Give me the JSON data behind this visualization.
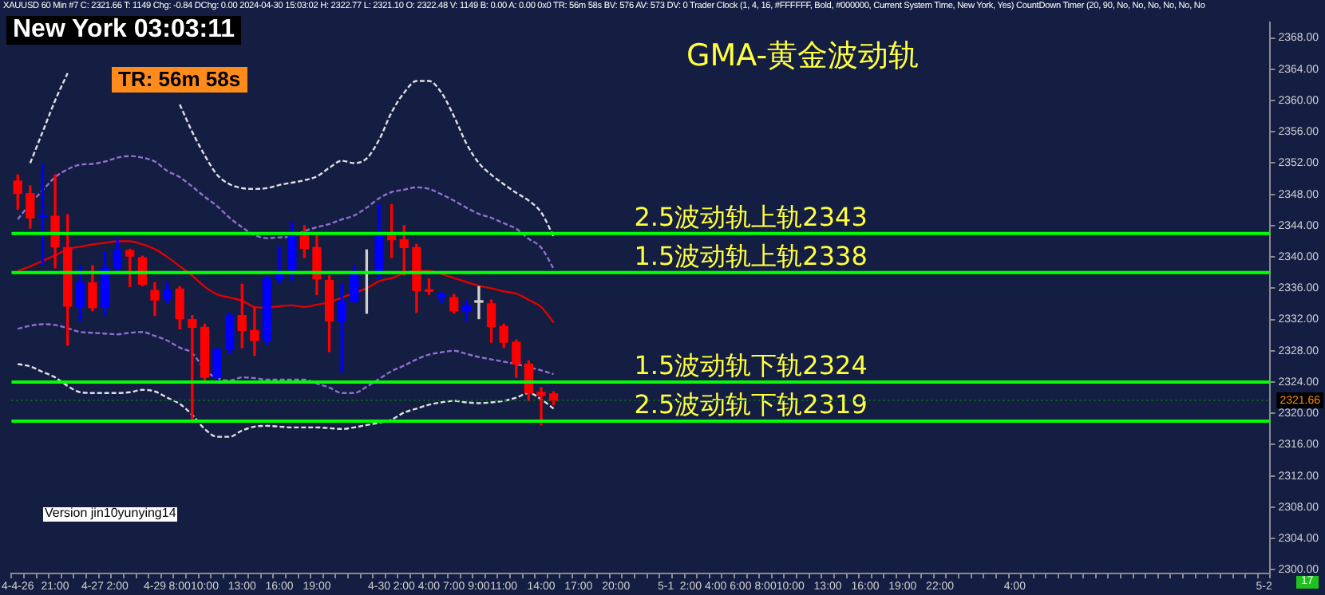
{
  "chart_data": {
    "type": "candlestick",
    "title": "GMA-黄金波动轨",
    "subtitle": "XAUUSD 60 Min #7 C: 2321.66 T: 1149 Chg: -0.84 DChg: 0.00 2024-04-30 15:03:02 H: 2322.77 L: 2321.10 O: 2322.48 V: 1149 B: 0.00 A: 0.00 0x0 TR: 56m 58s BV: 576 AV: 573 DV: 0 Trader Clock (1, 4, 16, #FFFFFF, Bold, #000000, Current System Time, New York, Yes) CountDown Timer (20, 90, No, No, No, No, No, No",
    "categories": [
      "4-4-26",
      null,
      null,
      "21:00",
      null,
      null,
      "4-27",
      null,
      "2:00",
      null,
      null,
      "4-29",
      null,
      "8:00",
      null,
      "10:00",
      null,
      null,
      "13:00",
      null,
      null,
      "16:00",
      null,
      null,
      "19:00",
      null,
      null,
      null,
      null,
      "4-30",
      null,
      "2:00",
      null,
      "4:00",
      null,
      "7:00",
      null,
      "9:00",
      null,
      "11:00",
      null,
      null,
      "14:00",
      null,
      null,
      "17:00",
      null,
      null,
      "20:00",
      null,
      null,
      null,
      "5-1",
      null,
      "2:00",
      null,
      "4:00",
      null,
      "6:00",
      null,
      "8:00",
      null,
      "10:00",
      null,
      null,
      "13:00",
      null,
      null,
      "16:00",
      null,
      null,
      "19:00",
      null,
      null,
      "22:00",
      null,
      null,
      null,
      null,
      null,
      "4:00",
      null,
      null,
      null,
      null,
      null,
      null,
      null,
      null,
      null,
      null,
      null,
      null,
      null,
      null,
      null,
      null,
      null,
      null,
      null,
      "5-2"
    ],
    "ohlc": [
      [
        2349.7,
        2350.5,
        2346.1,
        2348.1
      ],
      [
        2348.1,
        2349.1,
        2343.7,
        2345.0
      ],
      [
        2345.1,
        2351.8,
        2338.9,
        2345.2
      ],
      [
        2345.2,
        2350.5,
        2338.6,
        2341.3
      ],
      [
        2341.2,
        2345.4,
        2328.7,
        2333.7
      ],
      [
        2333.6,
        2338.9,
        2331.8,
        2336.7
      ],
      [
        2336.7,
        2338.9,
        2333.1,
        2333.5
      ],
      [
        2333.6,
        2340.6,
        2332.5,
        2338.6
      ],
      [
        2338.6,
        2342.3,
        2337.9,
        2340.8
      ],
      [
        2340.8,
        2341.0,
        2336.2,
        2340.1
      ],
      [
        2339.9,
        2340.1,
        2336.3,
        2336.5
      ],
      [
        2335.7,
        2336.7,
        2332.5,
        2334.5
      ],
      [
        2334.6,
        2336.7,
        2334.2,
        2335.8
      ],
      [
        2335.9,
        2336.2,
        2330.8,
        2332.1
      ],
      [
        2332.0,
        2332.5,
        2319.2,
        2331.0
      ],
      [
        2331.0,
        2331.4,
        2324.3,
        2324.6
      ],
      [
        2324.6,
        2328.4,
        2324.0,
        2328.2
      ],
      [
        2328.2,
        2332.8,
        2327.7,
        2332.5
      ],
      [
        2332.5,
        2336.5,
        2328.4,
        2330.6
      ],
      [
        2330.6,
        2333.5,
        2327.4,
        2329.3
      ],
      [
        2329.3,
        2337.6,
        2328.7,
        2337.2
      ],
      [
        2337.2,
        2341.3,
        2336.7,
        2338.0
      ],
      [
        2338.4,
        2344.4,
        2336.9,
        2342.9
      ],
      [
        2342.9,
        2344.0,
        2339.9,
        2341.1
      ],
      [
        2341.2,
        2342.7,
        2335.2,
        2337.2
      ],
      [
        2337.0,
        2337.6,
        2327.9,
        2331.8
      ],
      [
        2331.8,
        2336.5,
        2325.3,
        2334.3
      ],
      [
        2334.3,
        2338.8,
        2334.2,
        2337.9
      ],
      [
        2337.9,
        2340.9,
        2332.8,
        2337.9
      ],
      [
        2337.9,
        2346.7,
        2337.2,
        2342.9
      ],
      [
        2342.9,
        2346.7,
        2339.9,
        2342.2
      ],
      [
        2342.2,
        2344.0,
        2337.7,
        2341.2
      ],
      [
        2341.2,
        2341.6,
        2332.9,
        2335.7
      ],
      [
        2335.7,
        2337.2,
        2335.2,
        2335.6
      ],
      [
        2334.8,
        2335.4,
        2334.2,
        2335.3
      ],
      [
        2334.8,
        2335.2,
        2332.8,
        2333.1
      ],
      [
        2333.1,
        2334.5,
        2331.8,
        2333.8
      ],
      [
        2334.2,
        2336.2,
        2332.1,
        2334.2
      ],
      [
        2334.0,
        2334.5,
        2329.1,
        2331.1
      ],
      [
        2331.1,
        2331.4,
        2328.4,
        2329.1
      ],
      [
        2329.1,
        2329.4,
        2324.6,
        2326.3
      ],
      [
        2326.3,
        2326.7,
        2321.6,
        2322.6
      ],
      [
        2322.7,
        2323.3,
        2318.5,
        2322.3
      ],
      [
        2322.48,
        2322.77,
        2321.1,
        2321.66
      ],
      null,
      null,
      null,
      null,
      null,
      null,
      null,
      null,
      null,
      null,
      null,
      null,
      null,
      null,
      null,
      null,
      null,
      null,
      null,
      null,
      null,
      null,
      null,
      null,
      null,
      null,
      null,
      null,
      null,
      null,
      null,
      null,
      null,
      null,
      null,
      null,
      null,
      null,
      null,
      null,
      null,
      null,
      null,
      null,
      null,
      null,
      null,
      null,
      null,
      null,
      null,
      null,
      null,
      null,
      null,
      null,
      null
    ],
    "colors": [
      "#ff0000",
      "#ff0000",
      "#0000ff",
      "#ff0000",
      "#ff0000",
      "#0000ff",
      "#ff0000",
      "#0000ff",
      "#0000ff",
      "#ff0000",
      "#ff0000",
      "#ff0000",
      "#0000ff",
      "#ff0000",
      "#ff0000",
      "#ff0000",
      "#0000ff",
      "#0000ff",
      "#ff0000",
      "#ff0000",
      "#0000ff",
      "#0000ff",
      "#0000ff",
      "#ff0000",
      "#ff0000",
      "#ff0000",
      "#0000ff",
      "#0000ff",
      "#d0d0d0",
      "#0000ff",
      "#ff0000",
      "#ff0000",
      "#ff0000",
      "#ff0000",
      "#0000ff",
      "#ff0000",
      "#0000ff",
      "#d0d0d0",
      "#ff0000",
      "#ff0000",
      "#ff0000",
      "#ff0000",
      "#ff0000",
      "#ff0000",
      null,
      null,
      null,
      null,
      null,
      null,
      null,
      null,
      null,
      null,
      null,
      null,
      null,
      null,
      null,
      null,
      null,
      null,
      null,
      null,
      null,
      null,
      null,
      null,
      null,
      null,
      null,
      null,
      null,
      null,
      null,
      null,
      null,
      null,
      null,
      null,
      null,
      null,
      null,
      null,
      null,
      null,
      null,
      null,
      null,
      null,
      null,
      null,
      null,
      null,
      null,
      null,
      null,
      null,
      null,
      null,
      null
    ],
    "series": [
      {
        "type": "line",
        "color": "#e0e0e0",
        "line_style": "dashed",
        "values": [
          null,
          2352,
          2356,
          2360,
          2363.5,
          null,
          null,
          null,
          null,
          null,
          null,
          null,
          null,
          2359.5,
          2356,
          2353,
          2350.5,
          2349.3,
          2348.8,
          2348.7,
          2348.8,
          2349.2,
          2349.5,
          2349.8,
          2350.3,
          2351.4,
          2352.3,
          2352,
          2352.6,
          2355,
          2358.5,
          2361,
          2362.5,
          2362.5,
          2361,
          2358,
          2354.5,
          2352,
          2350.5,
          2349.3,
          2348.2,
          2347.2,
          2345.7,
          2342.6,
          null,
          null,
          null,
          null,
          null,
          null,
          null,
          null,
          null,
          null,
          null,
          null,
          null,
          null,
          null,
          null,
          null,
          null,
          null,
          null,
          null,
          null,
          null,
          null,
          null,
          null,
          null,
          null,
          null,
          null,
          null,
          null,
          null,
          null,
          null,
          null,
          null,
          null,
          null,
          null,
          null,
          null,
          null,
          null,
          null,
          null,
          null,
          null,
          null,
          null,
          null,
          null,
          null,
          null,
          null,
          null,
          null
        ]
      },
      {
        "type": "line",
        "color": "#8f6fd0",
        "line_style": "dashed",
        "values": [
          2344.8,
          2346.8,
          2348.5,
          2350.2,
          2351.2,
          2351.8,
          2351.9,
          2352.2,
          2352.7,
          2352.9,
          2352.7,
          2352.2,
          2351,
          2350.2,
          2349,
          2347.7,
          2346.5,
          2345,
          2343.8,
          2342.8,
          2342.4,
          2342.5,
          2342.6,
          2343.3,
          2343.8,
          2344.2,
          2344.8,
          2345.3,
          2346.3,
          2347.5,
          2348.3,
          2348.6,
          2348.9,
          2348.7,
          2348,
          2347.2,
          2346.3,
          2345.5,
          2345,
          2344.3,
          2343.6,
          2342.3,
          2341.2,
          2338.5,
          null,
          null,
          null,
          null,
          null,
          null,
          null,
          null,
          null,
          null,
          null,
          null,
          null,
          null,
          null,
          null,
          null,
          null,
          null,
          null,
          null,
          null,
          null,
          null,
          null,
          null,
          null,
          null,
          null,
          null,
          null,
          null,
          null,
          null,
          null,
          null,
          null,
          null,
          null,
          null,
          null,
          null,
          null,
          null,
          null,
          null,
          null,
          null,
          null,
          null,
          null,
          null,
          null,
          null,
          null,
          null,
          null
        ]
      },
      {
        "type": "line",
        "color": "#e00000",
        "line_style": "solid",
        "values": [
          2338.2,
          2338.8,
          2339.5,
          2340.2,
          2341,
          2341.3,
          2341.6,
          2341.8,
          2342,
          2342,
          2341.6,
          2341,
          2340,
          2338.8,
          2337.6,
          2336.2,
          2335.2,
          2334.8,
          2334.4,
          2333.6,
          2333.5,
          2333.7,
          2333.8,
          2333.6,
          2333.9,
          2334.2,
          2334.8,
          2335.4,
          2336,
          2336.9,
          2337.3,
          2337.9,
          2338.2,
          2338.2,
          2337.8,
          2337.3,
          2336.8,
          2336.3,
          2336,
          2335.6,
          2335.3,
          2334.5,
          2333.6,
          2331.6,
          null,
          null,
          null,
          null,
          null,
          null,
          null,
          null,
          null,
          null,
          null,
          null,
          null,
          null,
          null,
          null,
          null,
          null,
          null,
          null,
          null,
          null,
          null,
          null,
          null,
          null,
          null,
          null,
          null,
          null,
          null,
          null,
          null,
          null,
          null,
          null,
          null,
          null,
          null,
          null,
          null,
          null,
          null,
          null,
          null,
          null,
          null,
          null,
          null,
          null,
          null,
          null,
          null,
          null,
          null,
          null,
          null
        ]
      },
      {
        "type": "line",
        "color": "#8f6fd0",
        "line_style": "dashed",
        "values": [
          2330.8,
          2331.2,
          2331.4,
          2331.3,
          2330.9,
          2330.4,
          2330.3,
          2330.2,
          2330.1,
          2330.3,
          2330.4,
          2329.9,
          2329.3,
          2328.4,
          2327.7,
          2325.6,
          2324.5,
          2324.2,
          2324.6,
          2324.5,
          2324.3,
          2324.3,
          2324.3,
          2324.3,
          2323.8,
          2323.3,
          2322.6,
          2322.6,
          2323.4,
          2324.4,
          2325.4,
          2326.1,
          2326.9,
          2327.5,
          2327.8,
          2328,
          2327.6,
          2327.2,
          2326.9,
          2326.6,
          2326.3,
          2325.9,
          2325.5,
          2325,
          null,
          null,
          null,
          null,
          null,
          null,
          null,
          null,
          null,
          null,
          null,
          null,
          null,
          null,
          null,
          null,
          null,
          null,
          null,
          null,
          null,
          null,
          null,
          null,
          null,
          null,
          null,
          null,
          null,
          null,
          null,
          null,
          null,
          null,
          null,
          null,
          null,
          null,
          null,
          null,
          null,
          null,
          null,
          null,
          null,
          null,
          null,
          null,
          null,
          null,
          null,
          null,
          null,
          null,
          null,
          null,
          null
        ]
      },
      {
        "type": "line",
        "color": "#e0e0e0",
        "line_style": "dashed",
        "values": [
          2326.3,
          2326,
          2325.3,
          2324.6,
          2323.5,
          2322.7,
          2322.6,
          2322.6,
          2322.6,
          2322.7,
          2323,
          2322.8,
          2322,
          2321.2,
          2319.8,
          2318,
          2317,
          2317,
          2317.8,
          2318.3,
          2318.4,
          2318.3,
          2318.2,
          2318.2,
          2318.2,
          2318.1,
          2318,
          2318.2,
          2318.5,
          2318.8,
          2319.2,
          2320.1,
          2320.6,
          2321.1,
          2321.4,
          2321.6,
          2321.4,
          2321.3,
          2321.4,
          2321.6,
          2322,
          2322.6,
          2321.8,
          2320.6,
          null,
          null,
          null,
          null,
          null,
          null,
          null,
          null,
          null,
          null,
          null,
          null,
          null,
          null,
          null,
          null,
          null,
          null,
          null,
          null,
          null,
          null,
          null,
          null,
          null,
          null,
          null,
          null,
          null,
          null,
          null,
          null,
          null,
          null,
          null,
          null,
          null,
          null,
          null,
          null,
          null,
          null,
          null,
          null,
          null,
          null,
          null,
          null,
          null,
          null,
          null,
          null,
          null,
          null,
          null,
          null,
          null
        ]
      }
    ],
    "ylim": [
      2299.5,
      2370
    ],
    "yticks": [
      {
        "value": 2300,
        "label": "2300.00"
      },
      {
        "value": 2304,
        "label": "2304.00"
      },
      {
        "value": 2308,
        "label": "2308.00"
      },
      {
        "value": 2312,
        "label": "2312.00"
      },
      {
        "value": 2316,
        "label": "2316.00"
      },
      {
        "value": 2320,
        "label": "2320.00"
      },
      {
        "value": 2324,
        "label": "2324.00"
      },
      {
        "value": 2328,
        "label": "2328.00"
      },
      {
        "value": 2332,
        "label": "2332.00"
      },
      {
        "value": 2336,
        "label": "2336.00"
      },
      {
        "value": 2340,
        "label": "2340.00"
      },
      {
        "value": 2344,
        "label": "2344.00"
      },
      {
        "value": 2348,
        "label": "2348.00"
      },
      {
        "value": 2352,
        "label": "2352.00"
      },
      {
        "value": 2356,
        "label": "2356.00"
      },
      {
        "value": 2360,
        "label": "2360.00"
      },
      {
        "value": 2364,
        "label": "2364.00"
      },
      {
        "value": 2368,
        "label": "2368.00"
      }
    ],
    "ref_lines": [
      {
        "axis": "y",
        "value": 2343,
        "label": "2.5波动轨上轨2343",
        "color": "#00ff00",
        "line_style": "solid"
      },
      {
        "axis": "y",
        "value": 2338,
        "label": "1.5波动轨上轨2338",
        "color": "#00ff00",
        "line_style": "solid"
      },
      {
        "axis": "y",
        "value": 2324,
        "label": "1.5波动轨下轨2324",
        "color": "#00ff00",
        "line_style": "solid"
      },
      {
        "axis": "y",
        "value": 2319,
        "label": "2.5波动轨下轨2319",
        "color": "#00ff00",
        "line_style": "solid"
      },
      {
        "axis": "y",
        "value": 2321.66,
        "label": "2321.66",
        "color": "#0a6a1a",
        "line_style": "dotted"
      }
    ],
    "annotations": [
      "New York 03:03:11",
      "TR: 56m 58s",
      "Version jin10yunying14",
      "17"
    ],
    "grid": false,
    "legend": false
  }
}
